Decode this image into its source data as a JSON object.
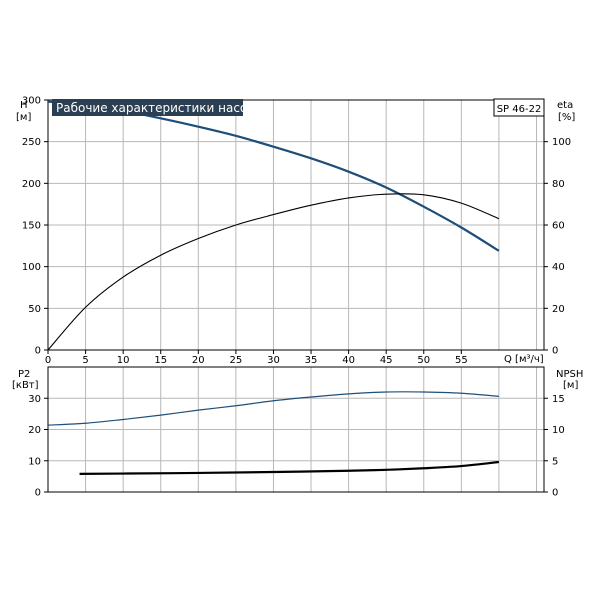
{
  "chart_data": [
    {
      "type": "line",
      "title": "Рабочие характеристики насоса",
      "model": "SP 46-22",
      "xlabel": "Q [м³/ч]",
      "xlim": [
        0,
        66
      ],
      "xticks": [
        0,
        5,
        10,
        15,
        20,
        25,
        30,
        35,
        40,
        45,
        50,
        55
      ],
      "y_left": {
        "label": "H",
        "unit": "[м]",
        "lim": [
          0,
          300
        ],
        "ticks": [
          0,
          50,
          100,
          150,
          200,
          250,
          300
        ]
      },
      "y_right": {
        "label": "eta",
        "unit": "[%]",
        "lim": [
          0,
          120
        ],
        "ticks": [
          0,
          20,
          40,
          60,
          80,
          100
        ]
      },
      "grid": true,
      "series": [
        {
          "key": "H",
          "axis": "left",
          "color": "#1f4e79",
          "x": [
            0,
            4.5,
            10,
            15,
            20,
            25,
            30,
            35,
            40,
            45,
            50,
            55,
            60
          ],
          "y": [
            298,
            295,
            287,
            278,
            268,
            257,
            244,
            230,
            214,
            195,
            172,
            147,
            119
          ]
        },
        {
          "key": "eta",
          "axis": "right",
          "color": "#000000",
          "x": [
            0,
            5,
            10,
            15,
            20,
            25,
            30,
            35,
            40,
            45,
            50,
            55,
            60
          ],
          "y": [
            0,
            20.5,
            35,
            45.5,
            53.5,
            60,
            65,
            69.5,
            73,
            74.8,
            74.5,
            70.5,
            63
          ]
        }
      ]
    },
    {
      "type": "line",
      "y_left": {
        "label": "P2",
        "unit": "[кВт]",
        "lim": [
          0,
          40
        ],
        "ticks": [
          0,
          10,
          20,
          30
        ]
      },
      "y_right": {
        "label": "NPSH",
        "unit": "[м]",
        "lim": [
          0,
          20
        ],
        "ticks": [
          0,
          5,
          10,
          15
        ]
      },
      "xlim": [
        0,
        66
      ],
      "grid": true,
      "series": [
        {
          "key": "P2",
          "axis": "left",
          "color": "#000000",
          "x": [
            4.2,
            10,
            20,
            30,
            40,
            45,
            50,
            55,
            60
          ],
          "y": [
            5.8,
            5.9,
            6.1,
            6.4,
            6.8,
            7.1,
            7.6,
            8.3,
            9.6
          ]
        },
        {
          "key": "NPSH",
          "axis": "right",
          "color": "#1f4e79",
          "x": [
            0,
            5,
            10,
            15,
            20,
            25,
            30,
            35,
            40,
            45,
            50,
            55,
            60
          ],
          "y": [
            10.7,
            11,
            11.6,
            12.3,
            13.1,
            13.8,
            14.6,
            15.2,
            15.7,
            16,
            16,
            15.8,
            15.3
          ]
        }
      ]
    }
  ]
}
